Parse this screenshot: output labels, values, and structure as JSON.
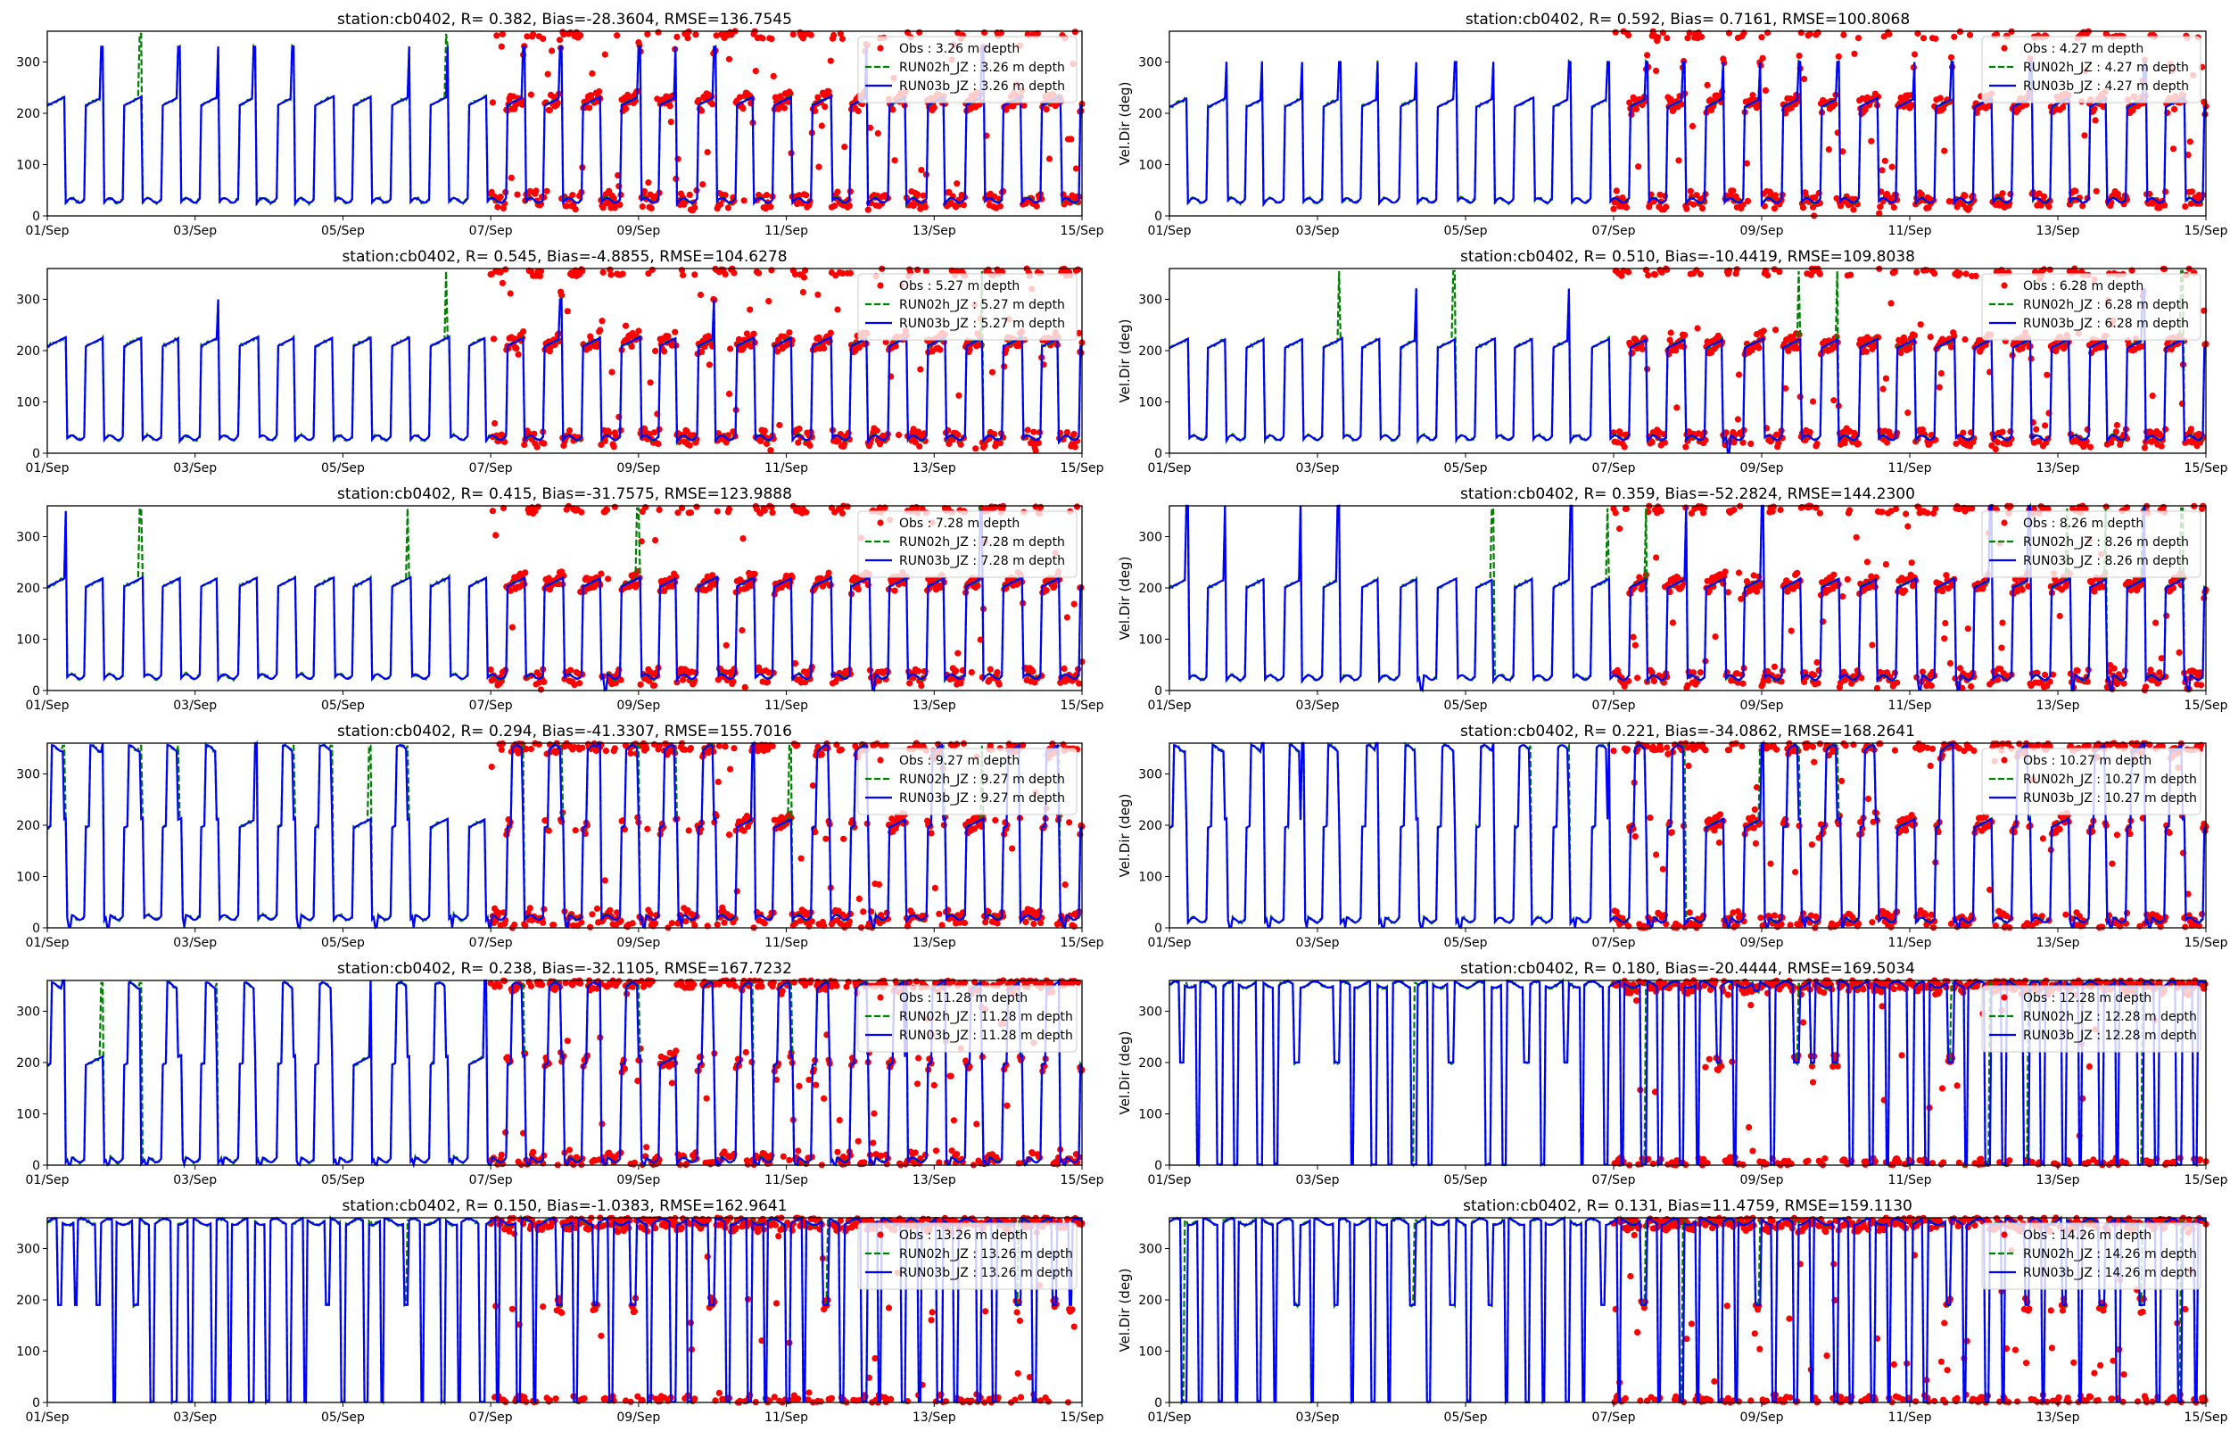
{
  "figure": {
    "xtick_labels": [
      "01/Sep",
      "03/Sep",
      "05/Sep",
      "07/Sep",
      "09/Sep",
      "11/Sep",
      "13/Sep",
      "15/Sep"
    ],
    "ytick_labels": [
      "0",
      "100",
      "200",
      "300"
    ],
    "colors": {
      "obs": "#ff0000",
      "run02h": "#008000",
      "run03b": "#0000ff"
    }
  },
  "chart_data": [
    {
      "type": "line",
      "title": "station:cb0402, R= 0.382, Bias=-28.3604, RMSE=136.7545",
      "ylabel": "",
      "ylim": [
        0,
        360
      ],
      "yticks": [
        0,
        100,
        200,
        300
      ],
      "xlim_days": [
        0,
        14
      ],
      "legend": "top-right",
      "series": [
        {
          "name": "Obs : 3.26 m depth",
          "kind": "scatter"
        },
        {
          "name": "RUN02h_JZ : 3.26 m depth",
          "kind": "dashed"
        },
        {
          "name": "RUN03b_JZ : 3.26 m depth",
          "kind": "solid"
        }
      ],
      "pattern": {
        "hi": 215,
        "lo": 25,
        "spike": 0.6,
        "spikeVal": 330,
        "top": 0.0,
        "zero": 0.05,
        "wrapped": false,
        "greenSpike": 0.08,
        "obsStartDay": 6
      }
    },
    {
      "type": "line",
      "title": "station:cb0402, R= 0.592, Bias= 0.7161, RMSE=100.8068",
      "ylabel": "Vel.Dir (deg)",
      "ylim": [
        0,
        360
      ],
      "yticks": [
        0,
        100,
        200,
        300
      ],
      "xlim_days": [
        0,
        14
      ],
      "legend": "top-right",
      "series": [
        {
          "name": "Obs : 4.27 m depth",
          "kind": "scatter"
        },
        {
          "name": "RUN02h_JZ : 4.27 m depth",
          "kind": "dashed"
        },
        {
          "name": "RUN03b_JZ : 4.27 m depth",
          "kind": "solid"
        }
      ],
      "pattern": {
        "hi": 212,
        "lo": 25,
        "spike": 0.55,
        "spikeVal": 300,
        "top": 0.0,
        "zero": 0.03,
        "wrapped": false,
        "greenSpike": 0.04,
        "obsStartDay": 6
      }
    },
    {
      "type": "line",
      "title": "station:cb0402, R= 0.545, Bias=-4.8855, RMSE=104.6278",
      "ylabel": "",
      "ylim": [
        0,
        360
      ],
      "yticks": [
        0,
        100,
        200,
        300
      ],
      "xlim_days": [
        0,
        14
      ],
      "legend": "top-right",
      "series": [
        {
          "name": "Obs : 5.27 m depth",
          "kind": "scatter"
        },
        {
          "name": "RUN02h_JZ : 5.27 m depth",
          "kind": "dashed"
        },
        {
          "name": "RUN03b_JZ : 5.27 m depth",
          "kind": "solid"
        }
      ],
      "pattern": {
        "hi": 208,
        "lo": 25,
        "spike": 0.15,
        "spikeVal": 300,
        "top": 0.0,
        "zero": 0.02,
        "wrapped": false,
        "greenSpike": 0.15,
        "obsStartDay": 6
      }
    },
    {
      "type": "line",
      "title": "station:cb0402, R= 0.510, Bias=-10.4419, RMSE=109.8038",
      "ylabel": "Vel.Dir (deg)",
      "ylim": [
        0,
        360
      ],
      "yticks": [
        0,
        100,
        200,
        300
      ],
      "xlim_days": [
        0,
        14
      ],
      "legend": "top-right",
      "series": [
        {
          "name": "Obs : 6.28 m depth",
          "kind": "scatter"
        },
        {
          "name": "RUN02h_JZ : 6.28 m depth",
          "kind": "dashed"
        },
        {
          "name": "RUN03b_JZ : 6.28 m depth",
          "kind": "solid"
        }
      ],
      "pattern": {
        "hi": 205,
        "lo": 25,
        "spike": 0.2,
        "spikeVal": 320,
        "top": 0.0,
        "zero": 0.03,
        "wrapped": false,
        "greenSpike": 0.3,
        "obsStartDay": 6
      }
    },
    {
      "type": "line",
      "title": "station:cb0402, R= 0.415, Bias=-31.7575, RMSE=123.9888",
      "ylabel": "",
      "ylim": [
        0,
        360
      ],
      "yticks": [
        0,
        100,
        200,
        300
      ],
      "xlim_days": [
        0,
        14
      ],
      "legend": "top-right",
      "series": [
        {
          "name": "Obs : 7.28 m depth",
          "kind": "scatter"
        },
        {
          "name": "RUN02h_JZ : 7.28 m depth",
          "kind": "dashed"
        },
        {
          "name": "RUN03b_JZ : 7.28 m depth",
          "kind": "solid"
        }
      ],
      "pattern": {
        "hi": 202,
        "lo": 22,
        "spike": 0.15,
        "spikeVal": 350,
        "top": 0.0,
        "zero": 0.1,
        "wrapped": false,
        "greenSpike": 0.3,
        "obsStartDay": 6
      }
    },
    {
      "type": "line",
      "title": "station:cb0402, R= 0.359, Bias=-52.2824, RMSE=144.2300",
      "ylabel": "Vel.Dir (deg)",
      "ylim": [
        0,
        360
      ],
      "yticks": [
        0,
        100,
        200,
        300
      ],
      "xlim_days": [
        0,
        14
      ],
      "legend": "top-right",
      "series": [
        {
          "name": "Obs : 8.26 m depth",
          "kind": "scatter"
        },
        {
          "name": "RUN02h_JZ : 8.26 m depth",
          "kind": "dashed"
        },
        {
          "name": "RUN03b_JZ : 8.26 m depth",
          "kind": "solid"
        }
      ],
      "pattern": {
        "hi": 200,
        "lo": 20,
        "spike": 0.3,
        "spikeVal": 360,
        "top": 0.0,
        "zero": 0.2,
        "wrapped": false,
        "greenSpike": 0.3,
        "obsStartDay": 6
      }
    },
    {
      "type": "line",
      "title": "station:cb0402, R= 0.294, Bias=-41.3307, RMSE=155.7016",
      "ylabel": "",
      "ylim": [
        0,
        360
      ],
      "yticks": [
        0,
        100,
        200,
        300
      ],
      "xlim_days": [
        0,
        14
      ],
      "legend": "top-right",
      "series": [
        {
          "name": "Obs : 9.27 m depth",
          "kind": "scatter"
        },
        {
          "name": "RUN02h_JZ : 9.27 m depth",
          "kind": "dashed"
        },
        {
          "name": "RUN03b_JZ : 9.27 m depth",
          "kind": "solid"
        }
      ],
      "pattern": {
        "hi": 195,
        "lo": 15,
        "spike": 0.2,
        "spikeVal": 360,
        "top": 0.6,
        "zero": 0.4,
        "wrapped": false,
        "greenSpike": 0.3,
        "obsStartDay": 6
      }
    },
    {
      "type": "line",
      "title": "station:cb0402, R= 0.221, Bias=-34.0862, RMSE=168.2641",
      "ylabel": "Vel.Dir (deg)",
      "ylim": [
        0,
        360
      ],
      "yticks": [
        0,
        100,
        200,
        300
      ],
      "xlim_days": [
        0,
        14
      ],
      "legend": "top-right",
      "series": [
        {
          "name": "Obs : 10.27 m depth",
          "kind": "scatter"
        },
        {
          "name": "RUN02h_JZ : 10.27 m depth",
          "kind": "dashed"
        },
        {
          "name": "RUN03b_JZ : 10.27 m depth",
          "kind": "solid"
        }
      ],
      "pattern": {
        "hi": 195,
        "lo": 10,
        "spike": 0.2,
        "spikeVal": 360,
        "top": 0.8,
        "zero": 0.6,
        "wrapped": false,
        "greenSpike": 0.3,
        "obsStartDay": 6
      }
    },
    {
      "type": "line",
      "title": "station:cb0402, R= 0.238, Bias=-32.1105, RMSE=167.7232",
      "ylabel": "",
      "ylim": [
        0,
        360
      ],
      "yticks": [
        0,
        100,
        200,
        300
      ],
      "xlim_days": [
        0,
        14
      ],
      "legend": "top-right",
      "series": [
        {
          "name": "Obs : 11.28 m depth",
          "kind": "scatter"
        },
        {
          "name": "RUN02h_JZ : 11.28 m depth",
          "kind": "dashed"
        },
        {
          "name": "RUN03b_JZ : 11.28 m depth",
          "kind": "solid"
        }
      ],
      "pattern": {
        "hi": 195,
        "lo": 5,
        "spike": 0.3,
        "spikeVal": 360,
        "top": 0.9,
        "zero": 0.9,
        "wrapped": false,
        "greenSpike": 0.4,
        "obsStartDay": 6
      }
    },
    {
      "type": "line",
      "title": "station:cb0402, R= 0.180, Bias=-20.4444, RMSE=169.5034",
      "ylabel": "Vel.Dir (deg)",
      "ylim": [
        0,
        360
      ],
      "yticks": [
        0,
        100,
        200,
        300
      ],
      "xlim_days": [
        0,
        14
      ],
      "legend": "top-right",
      "series": [
        {
          "name": "Obs : 12.28 m depth",
          "kind": "scatter"
        },
        {
          "name": "RUN02h_JZ : 12.28 m depth",
          "kind": "dashed"
        },
        {
          "name": "RUN03b_JZ : 12.28 m depth",
          "kind": "solid"
        }
      ],
      "pattern": {
        "hi": 200,
        "lo": 5,
        "spike": 0.3,
        "spikeVal": 360,
        "top": 0.95,
        "zero": 0.9,
        "wrapped": true,
        "greenSpike": 0.4,
        "obsStartDay": 6
      }
    },
    {
      "type": "line",
      "title": "station:cb0402, R= 0.150, Bias=-1.0383, RMSE=162.9641",
      "ylabel": "",
      "ylim": [
        0,
        360
      ],
      "yticks": [
        0,
        100,
        200,
        300
      ],
      "xlim_days": [
        0,
        14
      ],
      "legend": "top-right",
      "series": [
        {
          "name": "Obs : 13.26 m depth",
          "kind": "scatter"
        },
        {
          "name": "RUN02h_JZ : 13.26 m depth",
          "kind": "dashed"
        },
        {
          "name": "RUN03b_JZ : 13.26 m depth",
          "kind": "solid"
        }
      ],
      "pattern": {
        "hi": 190,
        "lo": 2,
        "spike": 0.3,
        "spikeVal": 360,
        "top": 1.0,
        "zero": 0.9,
        "wrapped": true,
        "greenSpike": 0.4,
        "obsStartDay": 6
      }
    },
    {
      "type": "line",
      "title": "station:cb0402, R= 0.131, Bias=11.4759, RMSE=159.1130",
      "ylabel": "Vel.Dir (deg)",
      "ylim": [
        0,
        360
      ],
      "yticks": [
        0,
        100,
        200,
        300
      ],
      "xlim_days": [
        0,
        14
      ],
      "legend": "top-right",
      "series": [
        {
          "name": "Obs : 14.26 m depth",
          "kind": "scatter"
        },
        {
          "name": "RUN02h_JZ : 14.26 m depth",
          "kind": "dashed"
        },
        {
          "name": "RUN03b_JZ : 14.26 m depth",
          "kind": "solid"
        }
      ],
      "pattern": {
        "hi": 190,
        "lo": 2,
        "spike": 0.3,
        "spikeVal": 360,
        "top": 1.0,
        "zero": 0.95,
        "wrapped": true,
        "greenSpike": 0.4,
        "obsStartDay": 6
      }
    }
  ]
}
